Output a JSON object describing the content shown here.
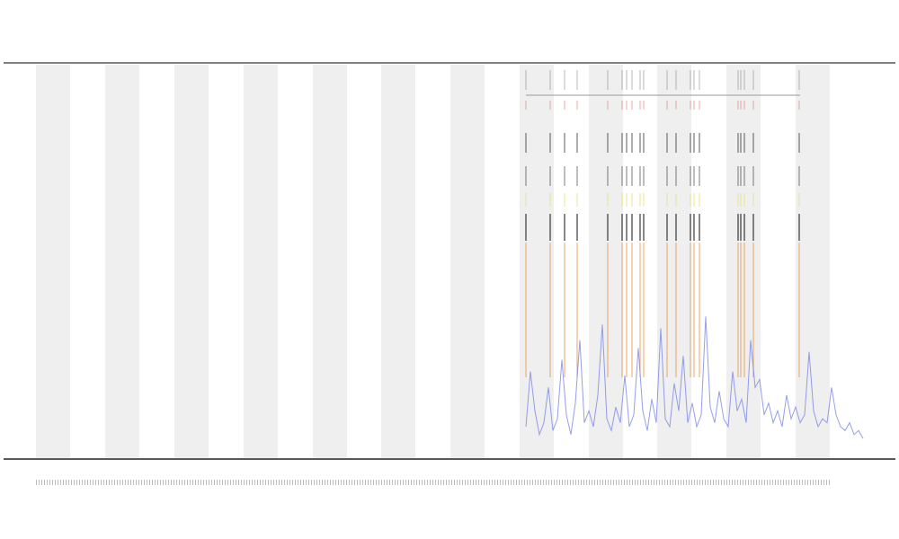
{
  "chart_data": {
    "type": "line",
    "series": [
      {
        "color": "#7b86e6",
        "values": [
          8,
          22,
          12,
          6,
          9,
          18,
          7,
          10,
          25,
          11,
          6,
          14,
          30,
          9,
          12,
          8,
          16,
          34,
          10,
          7,
          13,
          9,
          21,
          8,
          11,
          28,
          12,
          7,
          15,
          9,
          33,
          10,
          8,
          19,
          12,
          26,
          9,
          14,
          8,
          11,
          36,
          13,
          9,
          17,
          10,
          8,
          22,
          12,
          15,
          9,
          30,
          18,
          20,
          11,
          14,
          9,
          12,
          8,
          16,
          10,
          13,
          9,
          11,
          27,
          12,
          8,
          10,
          9,
          18,
          11,
          8,
          7,
          9,
          6,
          7,
          5
        ]
      }
    ],
    "ylim": [
      0,
      100
    ]
  }
}
